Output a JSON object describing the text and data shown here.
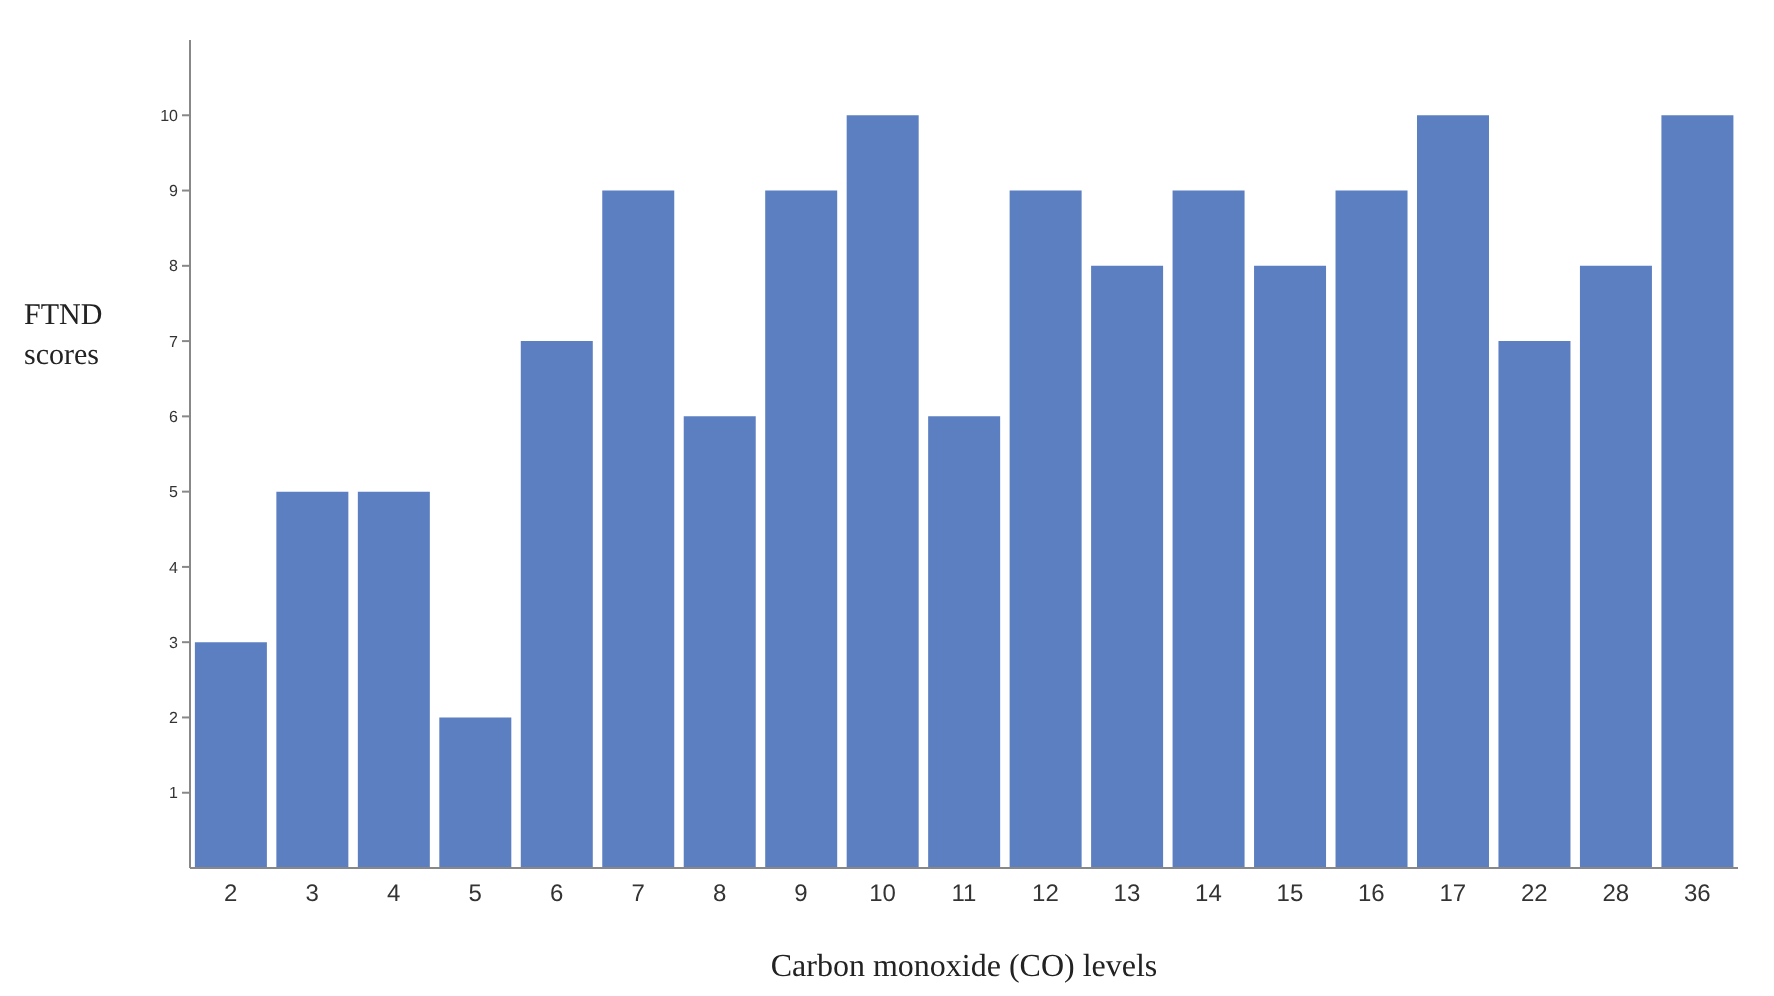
{
  "chart_data": {
    "type": "bar",
    "xlabel": "Carbon monoxide (CO) levels",
    "ylabel": "FTND scores",
    "categories": [
      "2",
      "3",
      "4",
      "5",
      "6",
      "7",
      "8",
      "9",
      "10",
      "11",
      "12",
      "13",
      "14",
      "15",
      "16",
      "17",
      "22",
      "28",
      "36"
    ],
    "values": [
      3,
      5,
      5,
      2,
      7,
      9,
      6,
      9,
      10,
      6,
      9,
      8,
      9,
      8,
      9,
      10,
      7,
      8,
      10
    ],
    "color": "#5b7fc0",
    "ylim": [
      0,
      11
    ],
    "yticks": [
      1,
      2,
      3,
      4,
      5,
      6,
      7,
      8,
      9,
      10
    ],
    "grid": false
  }
}
